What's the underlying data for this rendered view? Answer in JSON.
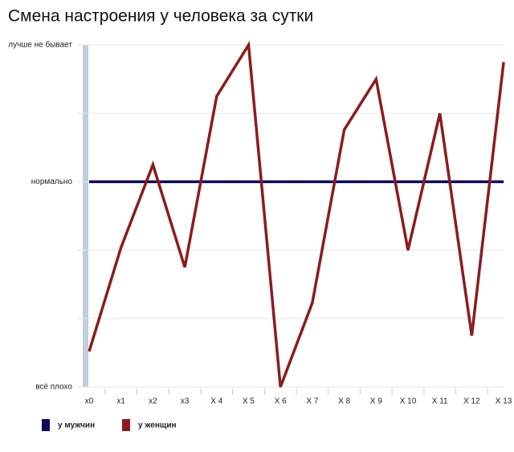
{
  "chart_data": {
    "type": "line",
    "title": "Смена настроения у человека за сутки",
    "categories": [
      "x0",
      "x1",
      "x2",
      "x3",
      "X 4",
      "X 5",
      "X 6",
      "X 7",
      "X 8",
      "X 9",
      "X 10",
      "X 11",
      "X 12",
      "X 13"
    ],
    "series": [
      {
        "name": "у мужчин",
        "color": "#0c0c5a",
        "values": [
          3,
          3,
          3,
          3,
          3,
          3,
          3,
          3,
          3,
          3,
          3,
          3,
          3,
          3
        ]
      },
      {
        "name": "у женщин",
        "color": "#8c1c1c",
        "values": [
          0.52,
          2.04,
          3.25,
          1.75,
          4.25,
          5,
          0,
          1.23,
          3.76,
          4.5,
          2,
          4,
          0.75,
          4.75
        ]
      }
    ],
    "ylim": [
      0,
      5
    ],
    "yticks": [
      {
        "value": 0,
        "label": "всё плохо"
      },
      {
        "value": 1,
        "label": null
      },
      {
        "value": 2,
        "label": null
      },
      {
        "value": 3,
        "label": "нормально"
      },
      {
        "value": 4,
        "label": null
      },
      {
        "value": 5,
        "label": "лучше не бывает"
      }
    ],
    "grid": true
  }
}
